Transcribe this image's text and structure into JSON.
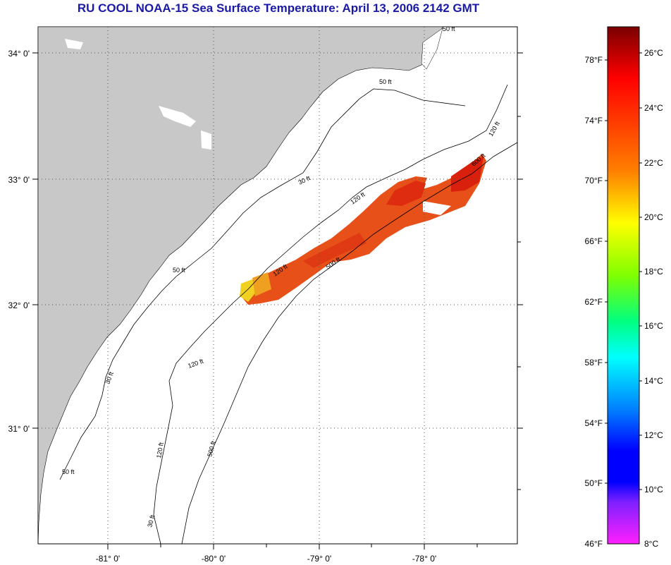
{
  "title": "RU COOL  NOAA-15  Sea Surface Temperature:  April 13, 2006 2142 GMT",
  "colors": {
    "land": "#c8c8c8",
    "ocean": "#ffffff",
    "title": "#1a1aa6",
    "grid": "#555555",
    "contour": "#000000"
  },
  "map": {
    "lat_labels": [
      "34° 0'",
      "33° 0'",
      "32° 0'",
      "31° 0'"
    ],
    "lon_labels": [
      "-81° 0'",
      "-80° 0'",
      "-79° 0'",
      "-78° 0'"
    ],
    "contour_labels": [
      "50 ft",
      "50 ft",
      "30 ft",
      "30 ft",
      "120 ft",
      "120 ft",
      "120 ft",
      "120 ft",
      "500 ft",
      "500 ft",
      "600 ft",
      "120 ft",
      "50 ft",
      "30 ft",
      "50 ft"
    ]
  },
  "colorbar": {
    "fahrenheit_labels": [
      "78°F",
      "74°F",
      "70°F",
      "66°F",
      "62°F",
      "58°F",
      "54°F",
      "50°F",
      "46°F"
    ],
    "celsius_labels": [
      "26°C",
      "24°C",
      "22°C",
      "20°C",
      "18°C",
      "16°C",
      "14°C",
      "12°C",
      "10°C",
      "8°C"
    ]
  }
}
